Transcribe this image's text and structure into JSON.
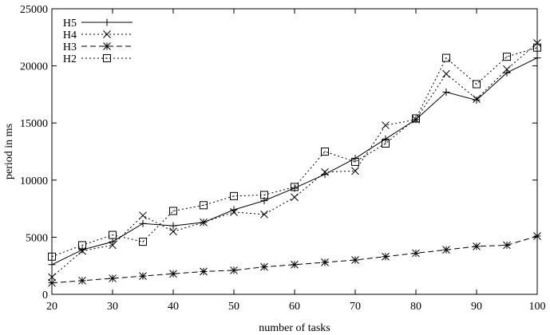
{
  "chart_data": {
    "type": "line",
    "xlabel": "number of tasks",
    "ylabel": "period in ms",
    "xlim": [
      20,
      100
    ],
    "ylim": [
      0,
      25000
    ],
    "xticks": [
      20,
      30,
      40,
      50,
      60,
      70,
      80,
      90,
      100
    ],
    "yticks": [
      0,
      5000,
      10000,
      15000,
      20000,
      25000
    ],
    "grid": false,
    "legend_position": "top-left",
    "x": [
      20,
      25,
      30,
      35,
      40,
      45,
      50,
      55,
      60,
      65,
      70,
      75,
      80,
      85,
      90,
      95,
      100
    ],
    "series": [
      {
        "name": "H5",
        "line_style": "solid",
        "marker": "plus",
        "values": [
          2600,
          3900,
          4600,
          6200,
          6000,
          6300,
          7400,
          8200,
          9300,
          10500,
          11900,
          13600,
          15300,
          17700,
          17000,
          19400,
          20700
        ]
      },
      {
        "name": "H4",
        "line_style": "dotted",
        "marker": "cross",
        "values": [
          1500,
          3800,
          4300,
          6900,
          5500,
          6300,
          7200,
          7000,
          8500,
          10700,
          10800,
          14800,
          15300,
          19300,
          17100,
          19700,
          22000
        ]
      },
      {
        "name": "H3",
        "line_style": "dashed",
        "marker": "star",
        "values": [
          1000,
          1200,
          1400,
          1600,
          1800,
          2000,
          2100,
          2400,
          2600,
          2800,
          3000,
          3300,
          3600,
          3900,
          4200,
          4300,
          5100
        ]
      },
      {
        "name": "H2",
        "line_style": "dotted",
        "marker": "square",
        "values": [
          3300,
          4300,
          5200,
          4600,
          7300,
          7800,
          8600,
          8700,
          9400,
          12500,
          11600,
          13200,
          15400,
          20700,
          18400,
          20800,
          21600
        ]
      }
    ]
  }
}
